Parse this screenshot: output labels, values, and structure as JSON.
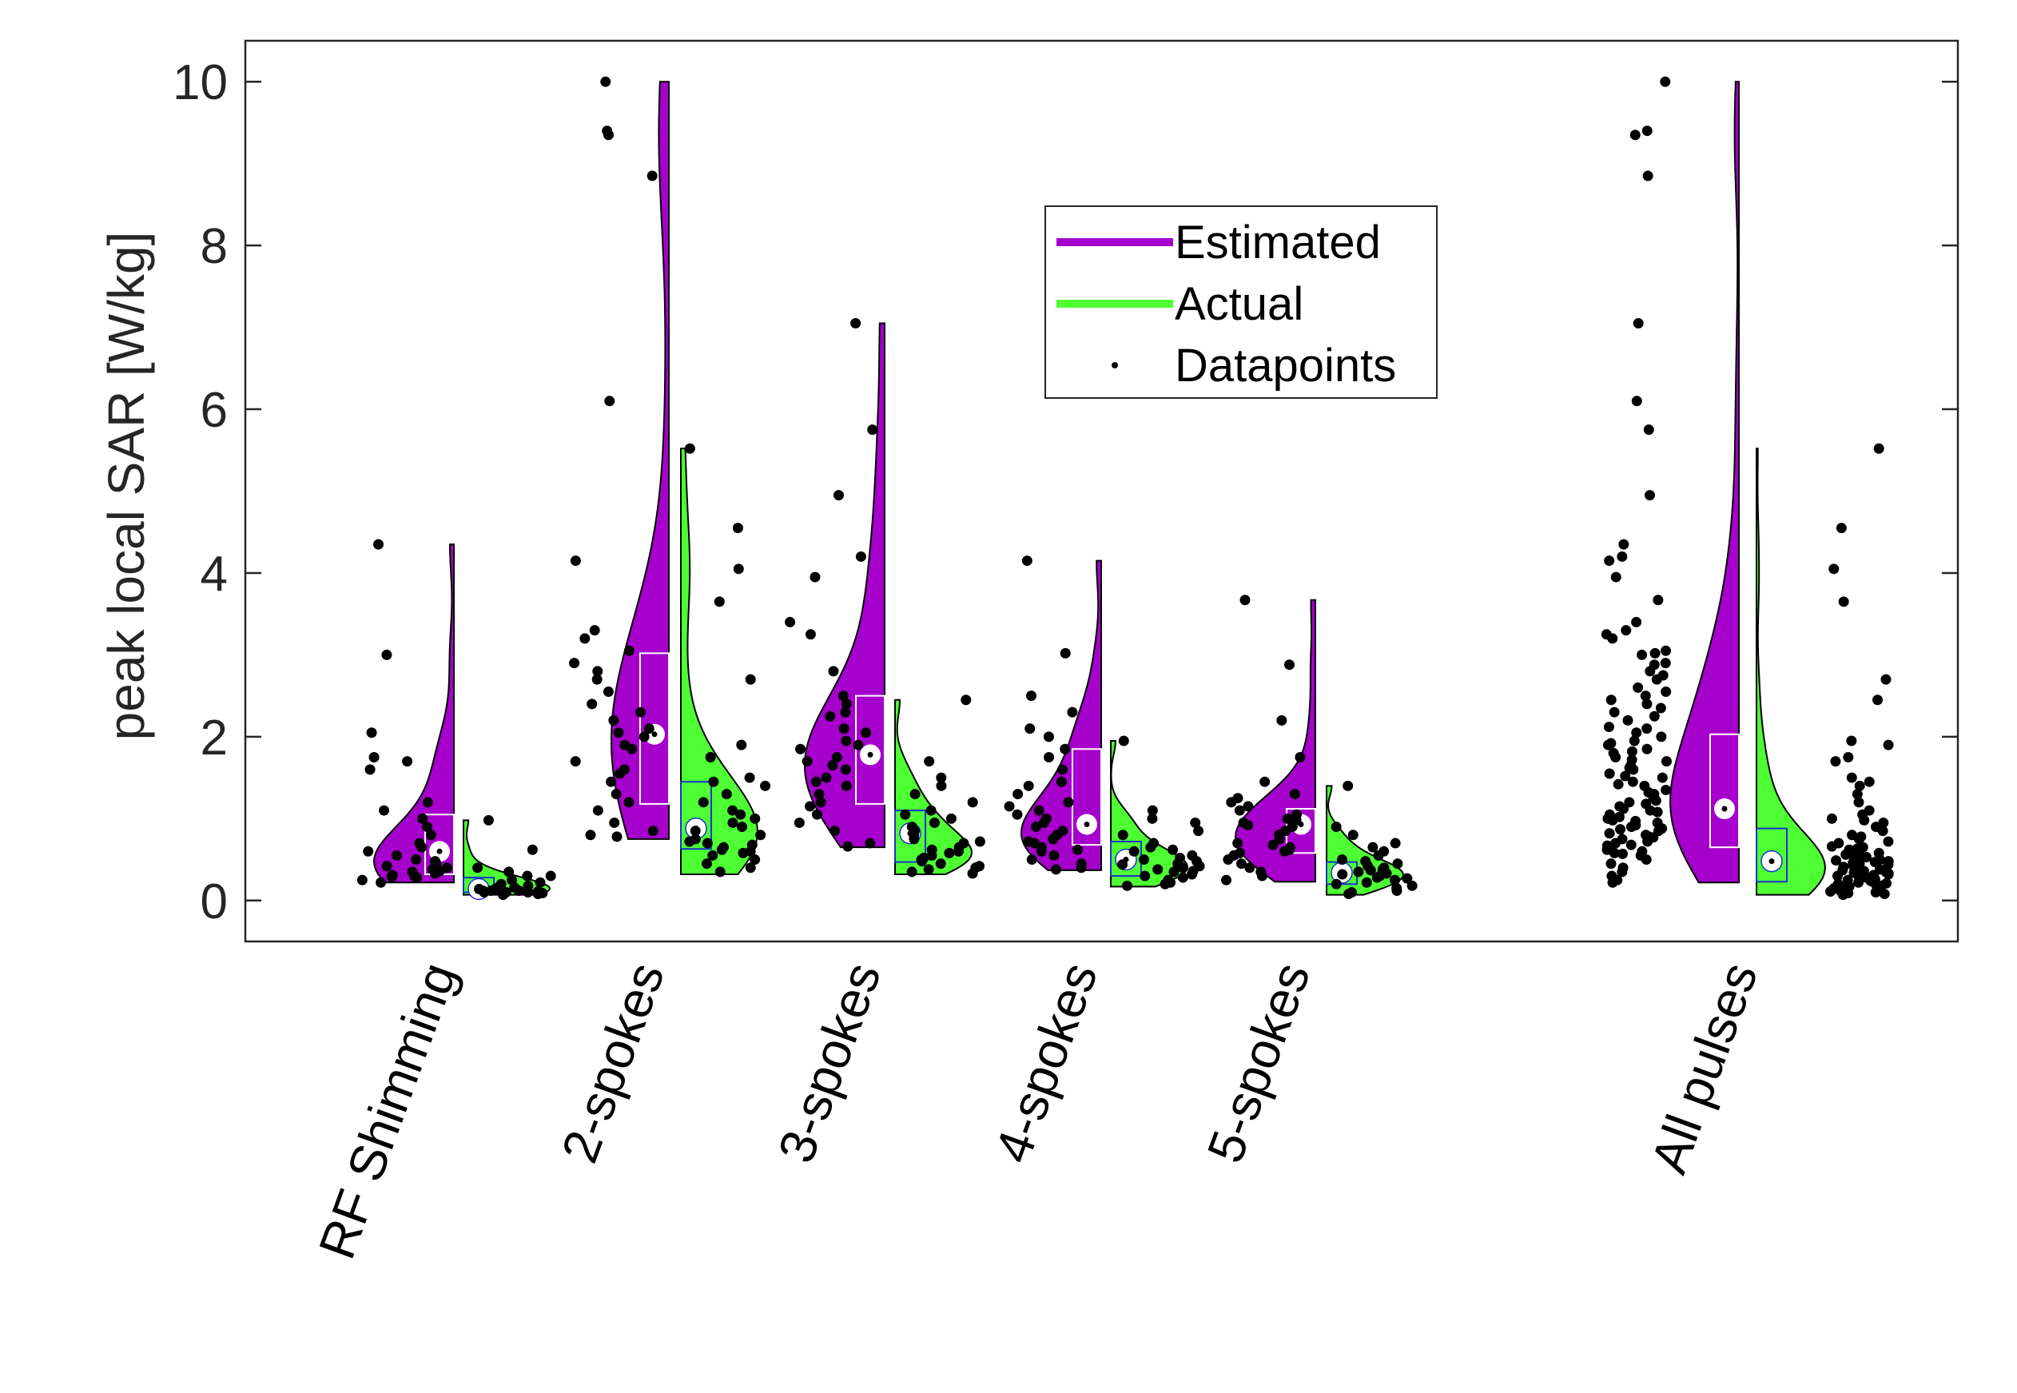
{
  "chart_data": {
    "type": "violin",
    "title": "",
    "ylabel": "peak local SAR [W/kg]",
    "xlabel": "",
    "ylim": [
      -0.5,
      10.5
    ],
    "yticks": [
      0,
      2,
      4,
      6,
      8,
      10
    ],
    "ytick_labels": [
      "0",
      "2",
      "4",
      "6",
      "8",
      "10"
    ],
    "grid": false,
    "legend": {
      "location": "upper-center",
      "entries": [
        {
          "label": "Estimated",
          "color": "#A600CC",
          "kind": "line"
        },
        {
          "label": "Actual",
          "color": "#4DFF33",
          "kind": "line"
        },
        {
          "label": "Datapoints",
          "color": "#000000",
          "kind": "dot"
        }
      ]
    },
    "colors": {
      "estimated": "#A600CC",
      "actual": "#4DFF33",
      "points": "#000000",
      "estimated_box": "#FFFFFF",
      "actual_box": "#1A33CC",
      "axes": "#262626"
    },
    "groups": [
      {
        "label": "RF Shimming",
        "estimated": {
          "min": 0.22,
          "max": 4.35,
          "q1": 0.32,
          "median": 0.6,
          "q3": 1.05,
          "mode": 0.5
        },
        "actual": {
          "min": 0.07,
          "max": 0.98,
          "q1": 0.1,
          "median": 0.14,
          "q3": 0.28,
          "mode": 0.2
        },
        "est_points": [
          0.3,
          0.22,
          0.35,
          0.4,
          0.28,
          0.5,
          0.6,
          0.45,
          0.7,
          0.8,
          1.0,
          1.1,
          1.2,
          1.6,
          1.7,
          1.75,
          2.05,
          0.9,
          0.33,
          0.38,
          0.25,
          0.55,
          0.65,
          3.0,
          4.35,
          0.42,
          0.36,
          0.48,
          0.29,
          0.31
        ],
        "act_points": [
          0.08,
          0.1,
          0.12,
          0.15,
          0.2,
          0.25,
          0.3,
          0.35,
          0.62,
          0.98,
          0.1,
          0.09,
          0.11,
          0.13,
          0.16,
          0.22,
          0.18,
          0.14,
          0.12,
          0.4,
          0.3,
          0.07,
          0.1,
          0.12
        ]
      },
      {
        "label": "2-spokes",
        "estimated": {
          "min": 0.75,
          "max": 10.0,
          "q1": 1.18,
          "median": 2.03,
          "q3": 3.02,
          "mode": 1.5
        },
        "actual": {
          "min": 0.32,
          "max": 5.52,
          "q1": 0.63,
          "median": 0.88,
          "q3": 1.45,
          "mode": 0.7
        },
        "est_points": [
          10.0,
          9.4,
          9.35,
          8.85,
          6.1,
          4.15,
          3.3,
          3.2,
          3.05,
          2.9,
          2.8,
          2.7,
          2.55,
          2.4,
          2.3,
          2.2,
          2.05,
          2.0,
          1.9,
          1.85,
          1.7,
          1.55,
          1.45,
          1.3,
          1.2,
          1.1,
          0.95,
          0.85,
          0.8,
          0.78,
          2.1,
          1.6
        ],
        "act_points": [
          5.52,
          4.55,
          4.05,
          3.65,
          2.7,
          1.9,
          1.75,
          1.5,
          1.4,
          1.3,
          1.2,
          1.1,
          1.05,
          1.0,
          0.95,
          0.9,
          0.85,
          0.8,
          0.75,
          0.7,
          0.65,
          0.6,
          0.55,
          0.5,
          0.45,
          0.4,
          0.35,
          0.62,
          0.72,
          1.45,
          0.58,
          0.68
        ]
      },
      {
        "label": "3-spokes",
        "estimated": {
          "min": 0.65,
          "max": 7.05,
          "q1": 1.18,
          "median": 1.78,
          "q3": 2.5,
          "mode": 1.8
        },
        "actual": {
          "min": 0.32,
          "max": 2.45,
          "q1": 0.47,
          "median": 0.82,
          "q3": 1.1,
          "mode": 0.6
        },
        "est_points": [
          7.05,
          5.75,
          4.95,
          4.2,
          3.95,
          3.4,
          3.25,
          2.8,
          2.5,
          2.4,
          2.3,
          2.25,
          2.1,
          2.05,
          1.95,
          1.85,
          1.75,
          1.7,
          1.6,
          1.5,
          1.45,
          1.4,
          1.3,
          1.2,
          1.15,
          1.05,
          0.95,
          0.85,
          0.7,
          0.66,
          1.65,
          1.9
        ],
        "act_points": [
          2.45,
          1.7,
          1.5,
          1.4,
          1.3,
          1.2,
          1.1,
          1.05,
          1.0,
          0.95,
          0.9,
          0.85,
          0.8,
          0.75,
          0.7,
          0.65,
          0.6,
          0.55,
          0.5,
          0.45,
          0.4,
          0.38,
          0.35,
          0.33,
          0.62,
          0.72,
          0.48,
          0.52,
          0.58,
          0.42
        ]
      },
      {
        "label": "4-spokes",
        "estimated": {
          "min": 0.37,
          "max": 4.15,
          "q1": 0.68,
          "median": 0.93,
          "q3": 1.85,
          "mode": 0.95
        },
        "actual": {
          "min": 0.17,
          "max": 1.95,
          "q1": 0.3,
          "median": 0.5,
          "q3": 0.72,
          "mode": 0.4
        },
        "est_points": [
          4.15,
          3.02,
          2.5,
          2.3,
          2.1,
          2.0,
          1.85,
          1.75,
          1.6,
          1.45,
          1.4,
          1.3,
          1.2,
          1.15,
          1.05,
          1.0,
          0.95,
          0.9,
          0.85,
          0.8,
          0.75,
          0.7,
          0.65,
          0.6,
          0.55,
          0.5,
          0.45,
          0.4,
          0.38,
          1.1,
          0.62,
          0.72
        ],
        "act_points": [
          1.95,
          1.1,
          1.0,
          0.95,
          0.85,
          0.8,
          0.7,
          0.65,
          0.6,
          0.55,
          0.5,
          0.48,
          0.45,
          0.42,
          0.4,
          0.38,
          0.35,
          0.32,
          0.3,
          0.28,
          0.25,
          0.22,
          0.2,
          0.18,
          0.36,
          0.52,
          0.44,
          0.62
        ]
      },
      {
        "label": "5-spokes",
        "estimated": {
          "min": 0.23,
          "max": 3.67,
          "q1": 0.58,
          "median": 0.93,
          "q3": 1.12,
          "mode": 0.8
        },
        "actual": {
          "min": 0.07,
          "max": 1.4,
          "q1": 0.2,
          "median": 0.34,
          "q3": 0.47,
          "mode": 0.3
        },
        "est_points": [
          3.67,
          2.88,
          2.2,
          1.75,
          1.45,
          1.3,
          1.25,
          1.2,
          1.1,
          1.05,
          1.0,
          0.95,
          0.92,
          0.9,
          0.85,
          0.8,
          0.75,
          0.7,
          0.65,
          0.62,
          0.6,
          0.58,
          0.55,
          0.5,
          0.45,
          0.4,
          0.35,
          0.3,
          0.25,
          1.15,
          0.68,
          0.98
        ],
        "act_points": [
          1.4,
          0.9,
          0.8,
          0.7,
          0.65,
          0.6,
          0.55,
          0.5,
          0.45,
          0.42,
          0.4,
          0.38,
          0.35,
          0.32,
          0.3,
          0.28,
          0.25,
          0.22,
          0.2,
          0.18,
          0.15,
          0.12,
          0.1,
          0.08,
          0.33,
          0.27,
          0.48,
          0.37
        ]
      },
      {
        "label": "All pulses",
        "estimated": {
          "min": 0.22,
          "max": 10.0,
          "q1": 0.65,
          "median": 1.12,
          "q3": 2.03,
          "mode": 1.0
        },
        "actual": {
          "min": 0.07,
          "max": 5.52,
          "q1": 0.23,
          "median": 0.48,
          "q3": 0.88,
          "mode": 0.35
        },
        "est_points": [
          10.0,
          9.4,
          9.35,
          8.85,
          7.05,
          6.1,
          5.75,
          4.95,
          4.35,
          4.2,
          4.15,
          3.95,
          3.67,
          3.4,
          3.3,
          3.25,
          3.2,
          3.05,
          3.02,
          3.0,
          2.9,
          2.88,
          2.8,
          2.7,
          2.55,
          2.5,
          2.4,
          2.3,
          2.25,
          2.2,
          2.1,
          2.05,
          2.0,
          1.95,
          1.9,
          1.85,
          1.8,
          1.75,
          1.7,
          1.65,
          1.6,
          1.55,
          1.5,
          1.45,
          1.4,
          1.35,
          1.3,
          1.25,
          1.2,
          1.15,
          1.1,
          1.05,
          1.0,
          0.95,
          0.9,
          0.85,
          0.8,
          0.75,
          0.7,
          0.65,
          0.6,
          0.55,
          0.5,
          0.45,
          0.4,
          0.35,
          0.3,
          0.25,
          0.22,
          1.12,
          1.08,
          0.98,
          0.92,
          0.88,
          0.82,
          0.78,
          0.72,
          0.68,
          0.62,
          0.58,
          1.42,
          1.32,
          1.22,
          1.18,
          1.02,
          0.97,
          0.87,
          0.77,
          0.67,
          0.57,
          1.52,
          1.62,
          1.72,
          1.82,
          1.92,
          2.12,
          2.35,
          2.45,
          2.6,
          2.75
        ],
        "act_points": [
          5.52,
          4.55,
          4.05,
          3.65,
          2.7,
          2.45,
          1.95,
          1.9,
          1.75,
          1.7,
          1.5,
          1.45,
          1.4,
          1.3,
          1.2,
          1.1,
          1.05,
          1.0,
          0.98,
          0.95,
          0.9,
          0.85,
          0.8,
          0.75,
          0.7,
          0.65,
          0.62,
          0.6,
          0.58,
          0.55,
          0.52,
          0.5,
          0.48,
          0.45,
          0.42,
          0.4,
          0.38,
          0.36,
          0.35,
          0.33,
          0.32,
          0.3,
          0.28,
          0.27,
          0.25,
          0.22,
          0.2,
          0.18,
          0.16,
          0.15,
          0.14,
          0.13,
          0.12,
          0.11,
          0.1,
          0.09,
          0.08,
          0.07,
          0.44,
          0.46,
          0.41,
          0.39,
          0.37,
          0.34,
          0.31,
          0.29,
          0.26,
          0.24,
          0.23,
          0.21,
          0.19,
          0.17,
          0.47,
          0.49,
          0.53,
          0.56,
          0.63,
          0.66,
          0.72,
          0.78
        ]
      }
    ]
  }
}
